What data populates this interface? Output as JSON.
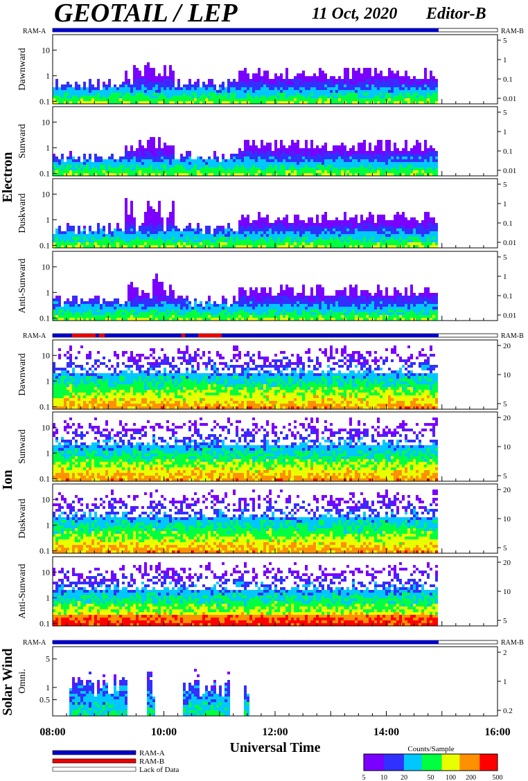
{
  "header": {
    "title": "GEOTAIL / LEP",
    "date": "11 Oct, 2020",
    "editor": "Editor-B"
  },
  "groups": [
    {
      "name": "Electron"
    },
    {
      "name": "Ion"
    },
    {
      "name": "Solar Wind"
    }
  ],
  "ram_labels": {
    "a": "RAM-A",
    "b": "RAM-B"
  },
  "chart_data": {
    "type": "heatmap",
    "x_axis": {
      "label": "Universal Time",
      "range": [
        "08:00",
        "16:00"
      ],
      "ticks": [
        "08:00",
        "10:00",
        "12:00",
        "14:00",
        "16:00"
      ],
      "data_end": "14:55"
    },
    "panels": [
      {
        "group": "Electron",
        "label": "Dawnward",
        "left_ticks": [
          "10",
          "1",
          "0.1"
        ],
        "right_ticks": [
          "5",
          "1",
          "0.1",
          "0.01"
        ],
        "ylim": [
          0.08,
          40
        ]
      },
      {
        "group": "Electron",
        "label": "Sunward",
        "left_ticks": [
          "10",
          "1",
          "0.1"
        ],
        "right_ticks": [
          "5",
          "1",
          "0.1",
          "0.01"
        ],
        "ylim": [
          0.08,
          40
        ]
      },
      {
        "group": "Electron",
        "label": "Duskward",
        "left_ticks": [
          "10",
          "1",
          "0.1"
        ],
        "right_ticks": [
          "5",
          "1",
          "0.1",
          "0.01"
        ],
        "ylim": [
          0.08,
          40
        ]
      },
      {
        "group": "Electron",
        "label": "Anti-Sunward",
        "left_ticks": [
          "10",
          "1",
          "0.1"
        ],
        "right_ticks": [
          "5",
          "1",
          "0.1",
          "0.01"
        ],
        "ylim": [
          0.08,
          40
        ]
      },
      {
        "group": "Ion",
        "label": "Dawnward",
        "left_ticks": [
          "10",
          "1",
          "0.1"
        ],
        "right_ticks": [
          "20",
          "10",
          "5"
        ],
        "ylim": [
          0.08,
          40
        ]
      },
      {
        "group": "Ion",
        "label": "Sunward",
        "left_ticks": [
          "10",
          "1",
          "0.1"
        ],
        "right_ticks": [
          "20",
          "10",
          "5"
        ],
        "ylim": [
          0.08,
          40
        ]
      },
      {
        "group": "Ion",
        "label": "Duskward",
        "left_ticks": [
          "10",
          "1",
          "0.1"
        ],
        "right_ticks": [
          "20",
          "10",
          "5"
        ],
        "ylim": [
          0.08,
          40
        ]
      },
      {
        "group": "Ion",
        "label": "Anti-Sunward",
        "left_ticks": [
          "10",
          "1",
          "0.1"
        ],
        "right_ticks": [
          "20",
          "10",
          "5"
        ],
        "ylim": [
          0.08,
          40
        ]
      },
      {
        "group": "Solar Wind",
        "label": "Omni.",
        "left_ticks": [
          "5",
          "1",
          "0.5"
        ],
        "right_ticks": [
          "2",
          "1",
          "0.2"
        ],
        "ylim": [
          0.2,
          10
        ]
      }
    ],
    "mode_bar_legend": [
      {
        "label": "RAM-A",
        "color": "#0000cc"
      },
      {
        "label": "RAM-B",
        "color": "#ee0000"
      },
      {
        "label": "Lack of Data",
        "color": "#ffffff"
      }
    ],
    "colorbar": {
      "title": "Counts/Sample",
      "ticks": [
        "5",
        "10",
        "20",
        "50",
        "100",
        "200",
        "500"
      ],
      "scale": "log",
      "colors": [
        "#7a00ff",
        "#3030ff",
        "#00c8ff",
        "#00ff40",
        "#e8ff00",
        "#ff9000",
        "#ff0000"
      ]
    }
  }
}
